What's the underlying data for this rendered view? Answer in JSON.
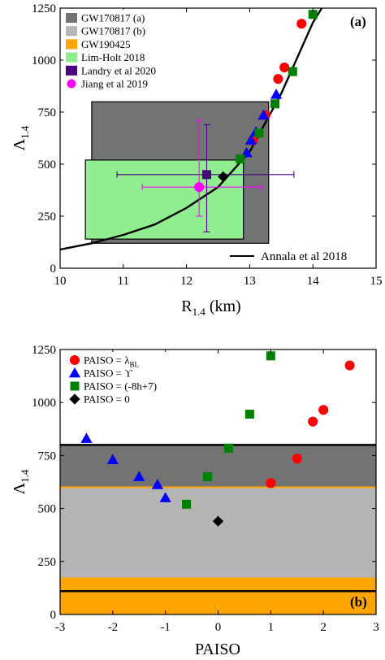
{
  "chart_data": [
    {
      "panel": "(a)",
      "type": "scatter",
      "xlabel": "R",
      "xlabel_sub": "1.4",
      "xlabel_unit": " (km)",
      "ylabel": "Λ",
      "ylabel_sub": "1.4",
      "xlim": [
        10,
        15
      ],
      "ylim": [
        0,
        1250
      ],
      "xticks": [
        10,
        11,
        12,
        13,
        14,
        15
      ],
      "yticks": [
        0,
        250,
        500,
        750,
        1000,
        1250
      ],
      "grid": false,
      "legend_position": "top-left",
      "regions": [
        {
          "name": "GW170817 (a)",
          "color": "#737373",
          "x": [
            10.5,
            13.3
          ],
          "y": [
            120,
            800
          ]
        },
        {
          "name": "GW170817 (b)",
          "color": "#b5b5b5",
          "x": [],
          "y": []
        },
        {
          "name": "GW190425",
          "color": "#ffa500",
          "x": [],
          "y": []
        },
        {
          "name": "Lim-Holt 2018",
          "color": "#90ee90",
          "x": [
            10.4,
            12.9
          ],
          "y": [
            140,
            520
          ]
        }
      ],
      "errorbar_points": [
        {
          "name": "Landry et al 2020",
          "color": "#4b0082",
          "marker": "square",
          "x": 12.32,
          "y": 450,
          "xerr": [
            10.9,
            13.7
          ],
          "yerr": [
            175,
            690
          ]
        },
        {
          "name": "Jiang et al 2019",
          "color": "#ff00ff",
          "marker": "circle",
          "x": 12.2,
          "y": 390,
          "xerr": [
            11.3,
            13.2
          ],
          "yerr": [
            250,
            710
          ]
        }
      ],
      "curve": {
        "name": "Annala et al 2018",
        "color": "#000000",
        "x": [
          10.0,
          10.5,
          11.0,
          11.5,
          12.0,
          12.5,
          13.0,
          13.5,
          14.0,
          14.2
        ],
        "y": [
          90,
          120,
          160,
          210,
          290,
          390,
          560,
          840,
          1180,
          1280
        ]
      },
      "series": [
        {
          "marker": "circle",
          "color": "#ff0000",
          "x": [
            13.05,
            13.25,
            13.45,
            13.55,
            13.82
          ],
          "y": [
            615,
            735,
            910,
            965,
            1175
          ]
        },
        {
          "marker": "triangle",
          "color": "#0000ff",
          "x": [
            12.95,
            13.02,
            13.1,
            13.22,
            13.42
          ],
          "y": [
            555,
            615,
            655,
            735,
            835
          ]
        },
        {
          "marker": "square",
          "color": "#008000",
          "x": [
            12.85,
            13.15,
            13.4,
            13.68,
            14.0
          ],
          "y": [
            525,
            650,
            790,
            945,
            1220
          ]
        },
        {
          "marker": "diamond",
          "color": "#000000",
          "x": [
            12.58
          ],
          "y": [
            440
          ]
        }
      ],
      "legend": [
        {
          "label": "GW170817 (a)",
          "swatch": "rect",
          "color": "#737373"
        },
        {
          "label": "GW170817 (b)",
          "swatch": "rect",
          "color": "#b5b5b5"
        },
        {
          "label": "GW190425",
          "swatch": "rect",
          "color": "#ffa500"
        },
        {
          "label": "Lim-Holt 2018",
          "swatch": "rect",
          "color": "#90ee90"
        },
        {
          "label": "Landry et al 2020",
          "swatch": "rect",
          "color": "#4b0082"
        },
        {
          "label": "Jiang et al 2019",
          "swatch": "circle",
          "color": "#ff00ff"
        }
      ],
      "curve_legend": "Annala et al 2018"
    },
    {
      "panel": "(b)",
      "type": "scatter",
      "xlabel": "PAISO",
      "ylabel": "Λ",
      "ylabel_sub": "1.4",
      "xlim": [
        -3,
        3
      ],
      "ylim": [
        0,
        1250
      ],
      "xticks": [
        -3,
        -2,
        -1,
        0,
        1,
        2,
        3
      ],
      "yticks": [
        0,
        250,
        500,
        750,
        1000,
        1250
      ],
      "grid": false,
      "legend_position": "top-left",
      "bands": [
        {
          "color": "#ffa500",
          "y": [
            0,
            170
          ]
        },
        {
          "color": "#b5b5b5",
          "y": [
            170,
            600
          ]
        },
        {
          "color": "#737373",
          "y": [
            600,
            800
          ]
        }
      ],
      "hlines": [
        {
          "color": "#000000",
          "y": 800
        },
        {
          "color": "#000000",
          "y": 110
        },
        {
          "color": "#ffa500",
          "y": 600
        },
        {
          "color": "#ffa500",
          "y": 170
        }
      ],
      "series": [
        {
          "name": "PAISO = λ",
          "name_sub": "BL",
          "marker": "circle",
          "color": "#ff0000",
          "x": [
            1.0,
            1.5,
            1.8,
            2.0,
            2.5
          ],
          "y": [
            620,
            735,
            910,
            965,
            1175
          ]
        },
        {
          "name": "PAISO = ϒ",
          "marker": "triangle",
          "color": "#0000ff",
          "x": [
            -2.5,
            -2.0,
            -1.5,
            -1.15,
            -1.0
          ],
          "y": [
            830,
            730,
            650,
            612,
            550
          ]
        },
        {
          "name": "PAISO = (-8h+7)",
          "marker": "square",
          "color": "#008000",
          "x": [
            -0.6,
            -0.2,
            0.2,
            0.6,
            1.0
          ],
          "y": [
            520,
            650,
            785,
            945,
            1220
          ]
        },
        {
          "name": "PAISO = 0",
          "marker": "diamond",
          "color": "#000000",
          "x": [
            0.0
          ],
          "y": [
            440
          ]
        }
      ]
    }
  ]
}
